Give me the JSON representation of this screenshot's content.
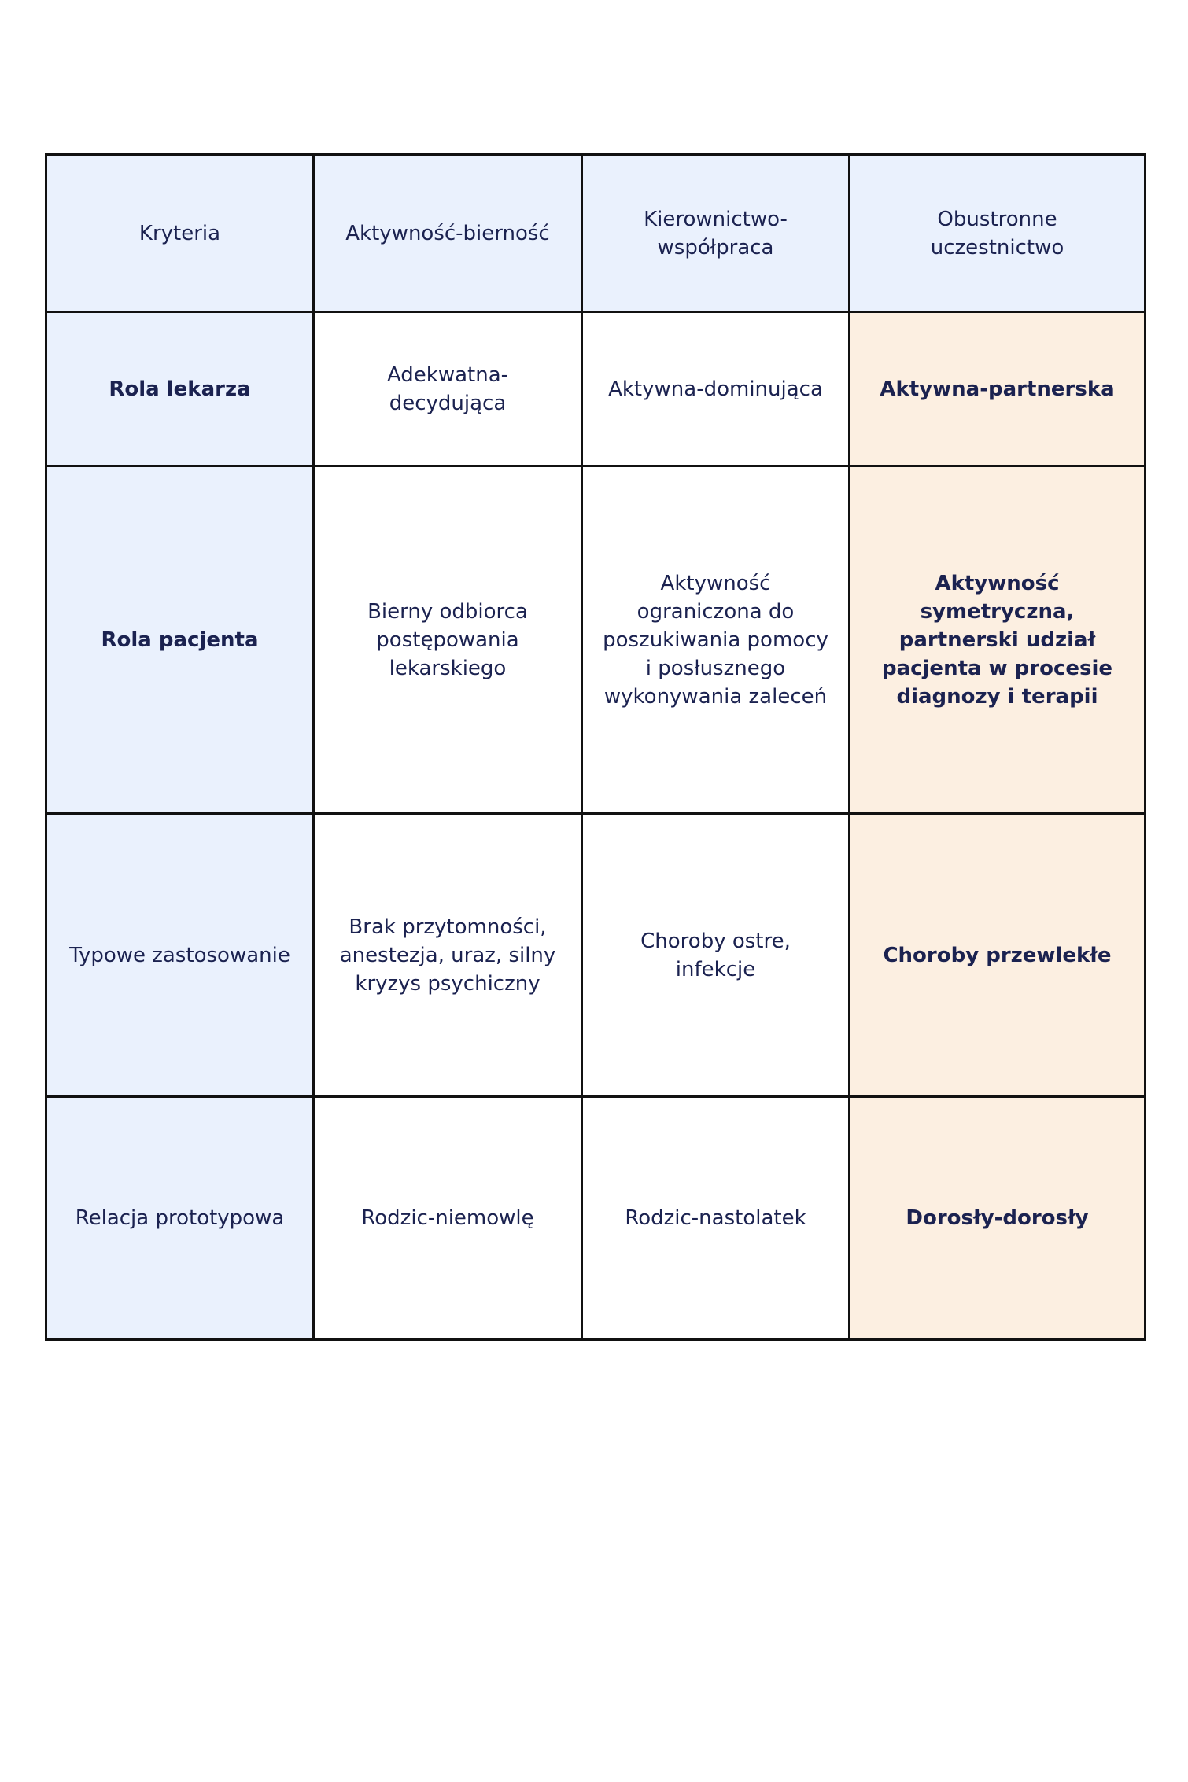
{
  "table": {
    "header": [
      "Kryteria",
      "Aktywność-bierność",
      "Kierownictwo-współpraca",
      "Obustronne uczestnictwo"
    ],
    "rows": [
      [
        "Rola lekarza",
        "Adekwatna-decydująca",
        "Aktywna-dominująca",
        "Aktywna-partnerska"
      ],
      [
        "Rola pacjenta",
        "Bierny odbiorca postępowania lekarskiego",
        "Aktywność ograniczona do poszukiwania pomocy i posłusznego wykonywania zaleceń",
        "Aktywność symetryczna, partnerski udział pacjenta w procesie diagnozy i terapii"
      ],
      [
        "Typowe zastosowanie",
        "Brak przytomności, anestezja, uraz, silny kryzys psychiczny",
        "Choroby ostre, infekcje",
        "Choroby przewlekłe"
      ],
      [
        "Relacja prototypowa",
        "Rodzic-niemowlę",
        "Rodzic-nastolatek",
        "Dorosły-dorosły"
      ]
    ]
  }
}
